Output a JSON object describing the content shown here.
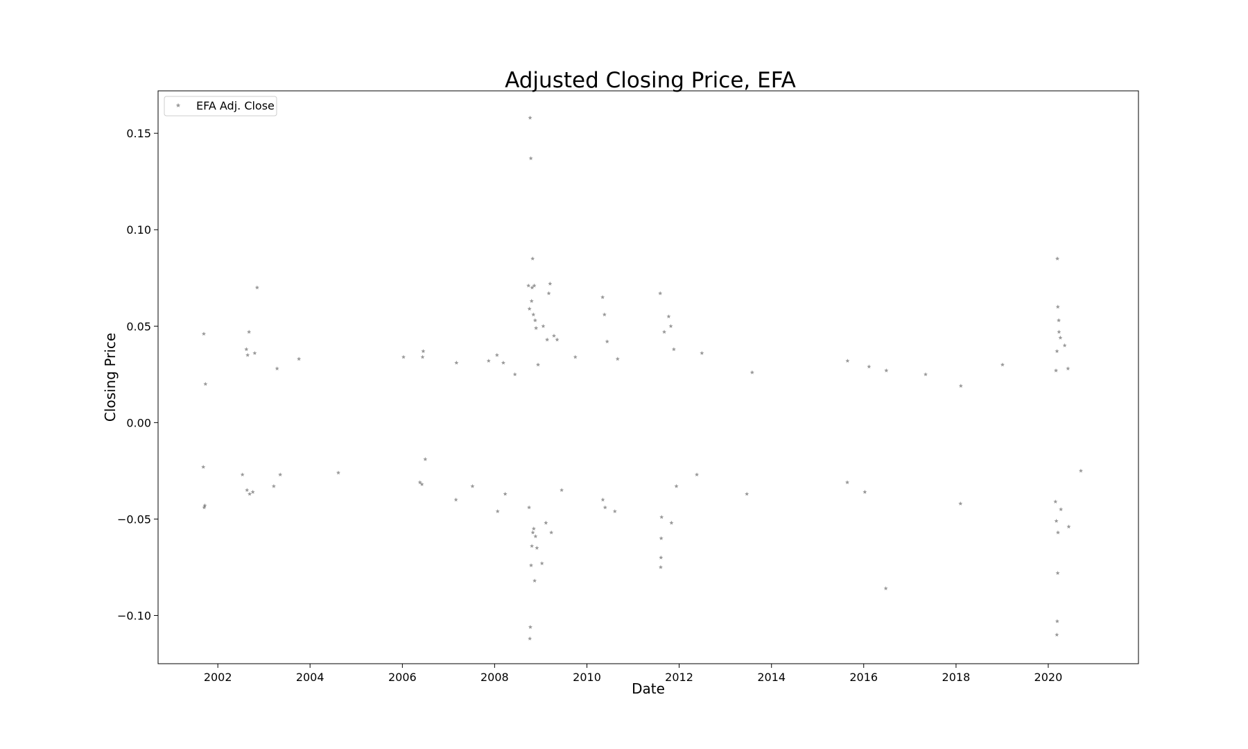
{
  "chart_data": {
    "type": "scatter",
    "title": "Adjusted Closing Price, EFA",
    "xlabel": "Date",
    "ylabel": "Closing Price",
    "xlim": [
      "2000-09-15",
      "2021-12-15"
    ],
    "ylim": [
      -0.125,
      0.172
    ],
    "x_ticks": [
      "2002",
      "2004",
      "2006",
      "2008",
      "2010",
      "2012",
      "2014",
      "2016",
      "2018",
      "2020"
    ],
    "y_ticks": [
      "0.15",
      "0.10",
      "0.05",
      "0.00",
      "−0.05",
      "−0.10"
    ],
    "y_tick_values": [
      0.15,
      0.1,
      0.05,
      0.0,
      -0.05,
      -0.1
    ],
    "grid": false,
    "legend": {
      "position": "top-left",
      "entries": [
        "EFA Adj. Close"
      ]
    },
    "marker": {
      "shape": "star",
      "color": "#000000",
      "alpha": 0.4
    },
    "series": [
      {
        "name": "EFA Adj. Close",
        "points": [
          [
            "2001-09-12",
            0.046
          ],
          [
            "2001-09-15",
            -0.044
          ],
          [
            "2001-09-20",
            -0.043
          ],
          [
            "2001-09-08",
            -0.023
          ],
          [
            "2001-09-25",
            0.02
          ],
          [
            "2002-08-15",
            0.038
          ],
          [
            "2002-08-25",
            0.035
          ],
          [
            "2002-09-05",
            0.047
          ],
          [
            "2002-08-20",
            -0.035
          ],
          [
            "2002-09-10",
            -0.037
          ],
          [
            "2002-10-20",
            0.036
          ],
          [
            "2002-10-05",
            -0.036
          ],
          [
            "2002-11-08",
            0.07
          ],
          [
            "2002-07-15",
            -0.027
          ],
          [
            "2003-04-15",
            0.028
          ],
          [
            "2003-03-20",
            -0.033
          ],
          [
            "2003-05-10",
            -0.027
          ],
          [
            "2003-10-05",
            0.033
          ],
          [
            "2004-08-12",
            -0.026
          ],
          [
            "2006-01-10",
            0.034
          ],
          [
            "2006-06-15",
            0.037
          ],
          [
            "2006-06-10",
            0.034
          ],
          [
            "2006-05-20",
            -0.031
          ],
          [
            "2006-06-05",
            -0.032
          ],
          [
            "2006-07-01",
            -0.019
          ],
          [
            "2007-03-01",
            -0.04
          ],
          [
            "2007-03-05",
            0.031
          ],
          [
            "2007-07-10",
            -0.033
          ],
          [
            "2007-11-15",
            0.032
          ],
          [
            "2008-01-20",
            0.035
          ],
          [
            "2008-01-25",
            -0.046
          ],
          [
            "2008-03-10",
            0.031
          ],
          [
            "2008-03-25",
            -0.037
          ],
          [
            "2008-06-10",
            0.025
          ],
          [
            "2008-09-25",
            0.071
          ],
          [
            "2008-09-30",
            -0.044
          ],
          [
            "2008-10-03",
            0.059
          ],
          [
            "2008-10-06",
            -0.112
          ],
          [
            "2008-10-08",
            0.158
          ],
          [
            "2008-10-10",
            -0.106
          ],
          [
            "2008-10-14",
            0.137
          ],
          [
            "2008-10-16",
            -0.074
          ],
          [
            "2008-10-20",
            0.063
          ],
          [
            "2008-10-22",
            -0.064
          ],
          [
            "2008-10-24",
            0.07
          ],
          [
            "2008-10-28",
            0.085
          ],
          [
            "2008-10-30",
            -0.057
          ],
          [
            "2008-11-03",
            0.056
          ],
          [
            "2008-11-06",
            -0.055
          ],
          [
            "2008-11-10",
            0.071
          ],
          [
            "2008-11-13",
            -0.082
          ],
          [
            "2008-11-17",
            0.053
          ],
          [
            "2008-11-20",
            -0.059
          ],
          [
            "2008-11-24",
            0.049
          ],
          [
            "2008-12-01",
            -0.065
          ],
          [
            "2008-12-10",
            0.03
          ],
          [
            "2009-01-10",
            -0.073
          ],
          [
            "2009-01-20",
            0.05
          ],
          [
            "2009-02-10",
            -0.052
          ],
          [
            "2009-02-20",
            0.043
          ],
          [
            "2009-03-05",
            0.067
          ],
          [
            "2009-03-15",
            0.072
          ],
          [
            "2009-03-25",
            -0.057
          ],
          [
            "2009-04-15",
            0.045
          ],
          [
            "2009-05-10",
            0.043
          ],
          [
            "2009-06-15",
            -0.035
          ],
          [
            "2009-10-01",
            0.034
          ],
          [
            "2010-05-05",
            0.065
          ],
          [
            "2010-05-20",
            0.056
          ],
          [
            "2010-05-07",
            -0.04
          ],
          [
            "2010-05-25",
            -0.044
          ],
          [
            "2010-06-10",
            0.042
          ],
          [
            "2010-08-10",
            -0.046
          ],
          [
            "2010-09-01",
            0.033
          ],
          [
            "2011-08-04",
            0.067
          ],
          [
            "2011-08-08",
            -0.075
          ],
          [
            "2011-08-10",
            -0.07
          ],
          [
            "2011-08-12",
            -0.06
          ],
          [
            "2011-08-15",
            -0.049
          ],
          [
            "2011-09-05",
            0.047
          ],
          [
            "2011-10-10",
            0.055
          ],
          [
            "2011-10-27",
            0.05
          ],
          [
            "2011-11-01",
            -0.052
          ],
          [
            "2011-11-20",
            0.038
          ],
          [
            "2011-12-10",
            -0.033
          ],
          [
            "2012-05-20",
            -0.027
          ],
          [
            "2012-06-29",
            0.036
          ],
          [
            "2013-06-20",
            -0.037
          ],
          [
            "2013-08-01",
            0.026
          ],
          [
            "2015-08-24",
            -0.031
          ],
          [
            "2015-08-26",
            0.032
          ],
          [
            "2016-01-10",
            -0.036
          ],
          [
            "2016-02-12",
            0.029
          ],
          [
            "2016-06-24",
            -0.086
          ],
          [
            "2016-06-28",
            0.027
          ],
          [
            "2017-05-05",
            0.025
          ],
          [
            "2018-02-05",
            -0.042
          ],
          [
            "2018-02-08",
            0.019
          ],
          [
            "2019-01-04",
            0.03
          ],
          [
            "2020-02-27",
            -0.041
          ],
          [
            "2020-03-02",
            0.027
          ],
          [
            "2020-03-05",
            -0.051
          ],
          [
            "2020-03-09",
            -0.11
          ],
          [
            "2020-03-10",
            0.037
          ],
          [
            "2020-03-12",
            -0.103
          ],
          [
            "2020-03-13",
            0.085
          ],
          [
            "2020-03-16",
            -0.078
          ],
          [
            "2020-03-17",
            0.06
          ],
          [
            "2020-03-18",
            -0.057
          ],
          [
            "2020-03-24",
            0.053
          ],
          [
            "2020-03-26",
            0.047
          ],
          [
            "2020-04-06",
            0.044
          ],
          [
            "2020-04-10",
            -0.045
          ],
          [
            "2020-05-10",
            0.04
          ],
          [
            "2020-06-11",
            -0.054
          ],
          [
            "2020-06-05",
            0.028
          ],
          [
            "2020-09-15",
            -0.025
          ]
        ]
      }
    ]
  }
}
